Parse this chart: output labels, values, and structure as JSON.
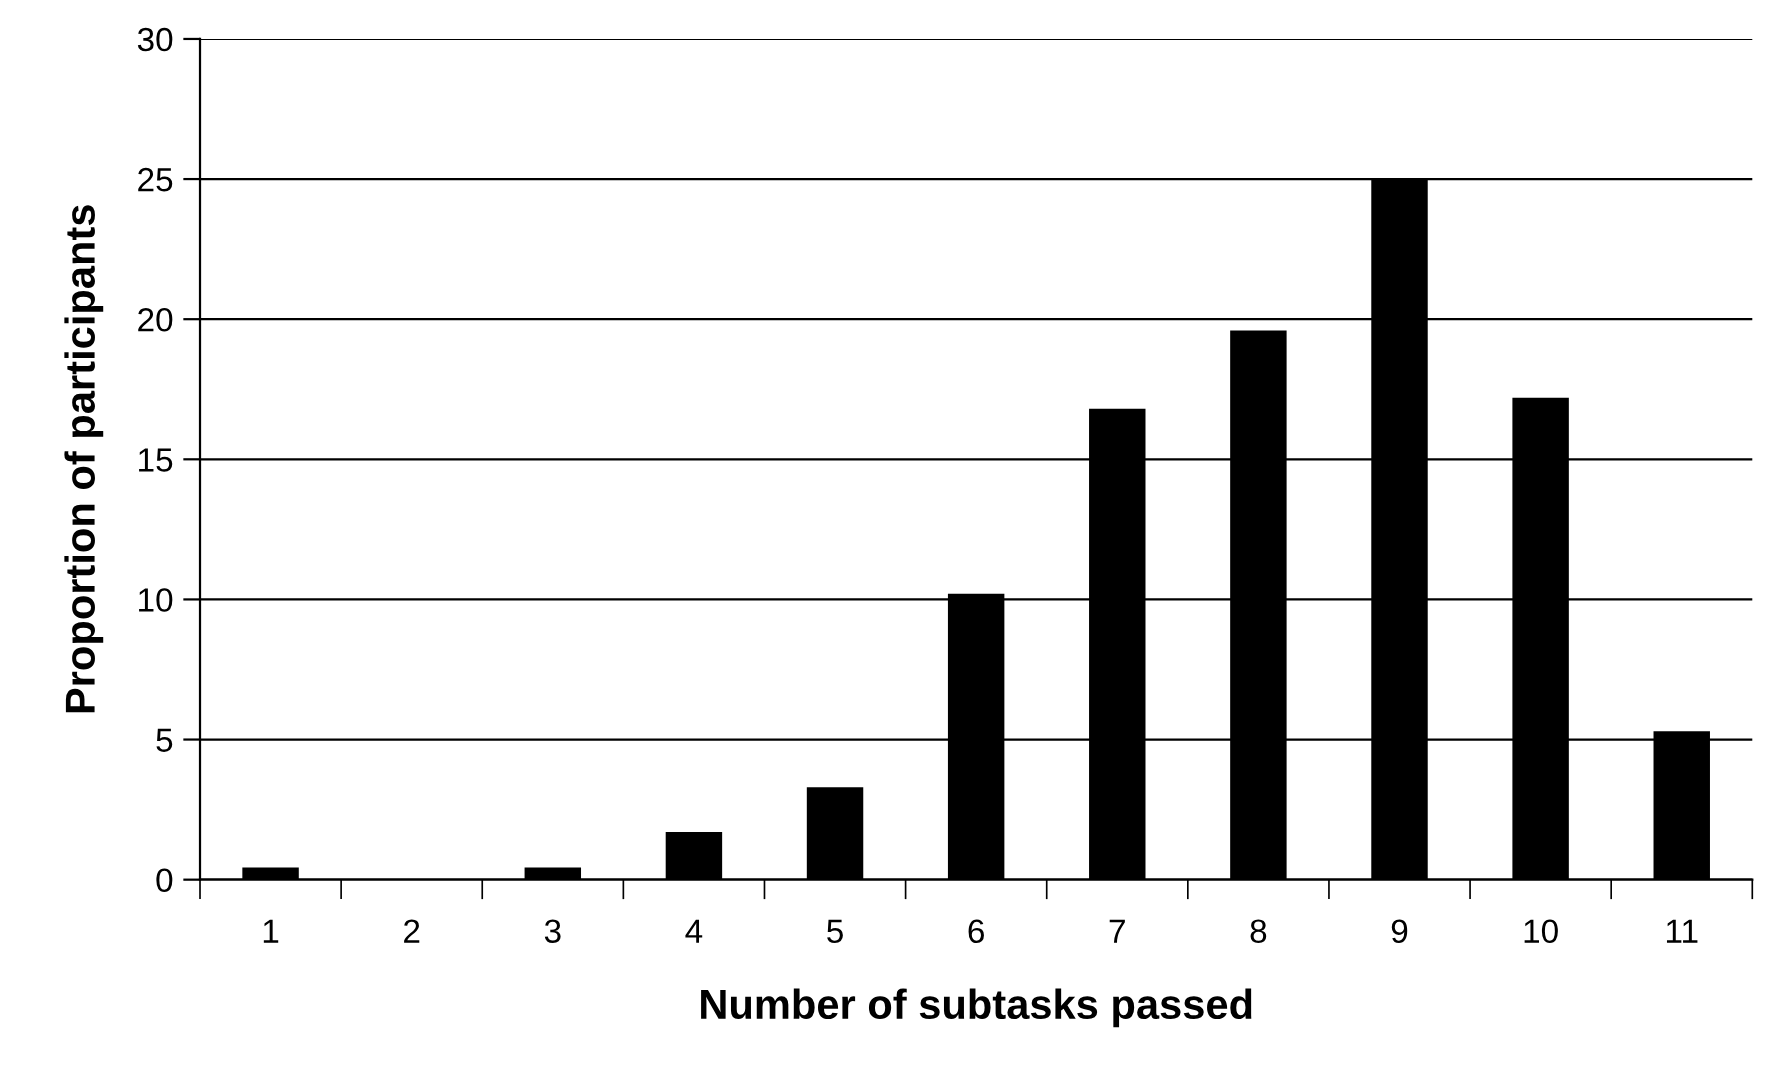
{
  "chart_data": {
    "type": "bar",
    "xlabel": "Number of subtasks passed",
    "ylabel": "Proportion of participants",
    "categories": [
      "1",
      "2",
      "3",
      "4",
      "5",
      "6",
      "7",
      "8",
      "9",
      "10",
      "11"
    ],
    "values": [
      0.43,
      0,
      0.43,
      1.7,
      3.3,
      10.2,
      16.8,
      19.6,
      25.0,
      17.2,
      5.3
    ],
    "color": "#000000",
    "ylim": [
      0,
      30
    ],
    "yticks": [
      0,
      5,
      10,
      15,
      20,
      25,
      30
    ],
    "grid": "y"
  }
}
